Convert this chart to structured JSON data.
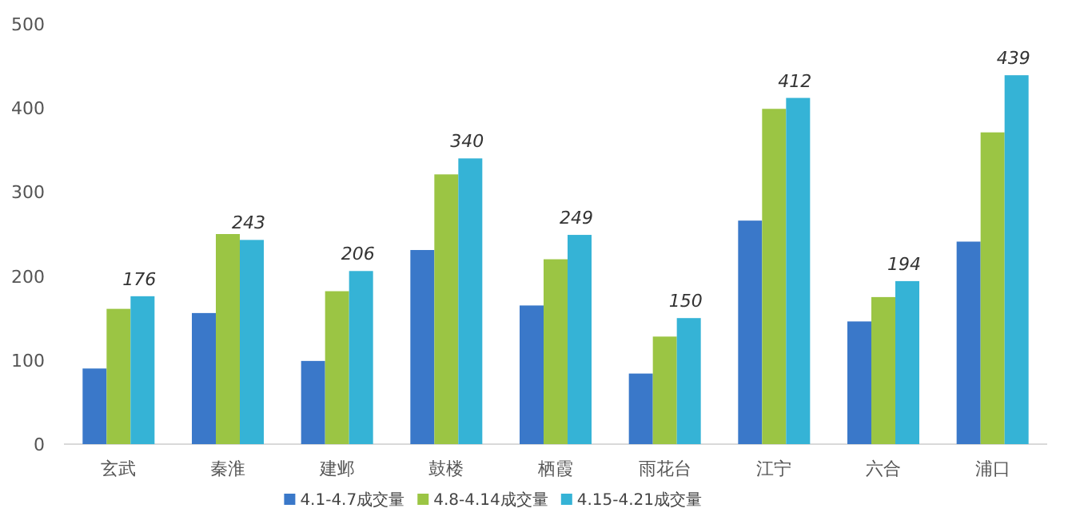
{
  "chart_data": {
    "type": "bar",
    "categories": [
      "玄武",
      "秦淮",
      "建邺",
      "鼓楼",
      "栖霞",
      "雨花台",
      "江宁",
      "六合",
      "浦口"
    ],
    "series": [
      {
        "name": "4.1-4.7成交量",
        "color": "#3a78c9",
        "values": [
          90,
          156,
          99,
          231,
          165,
          84,
          266,
          146,
          241
        ]
      },
      {
        "name": "4.8-4.14成交量",
        "color": "#9bc544",
        "values": [
          161,
          250,
          182,
          321,
          220,
          128,
          399,
          175,
          371
        ]
      },
      {
        "name": "4.15-4.21成交量",
        "color": "#35b3d6",
        "values": [
          176,
          243,
          206,
          340,
          249,
          150,
          412,
          194,
          439
        ],
        "value_labels": [
          "176",
          "243",
          "206",
          "340",
          "249",
          "150",
          "412",
          "194",
          "439"
        ]
      }
    ],
    "ylim": [
      0,
      500
    ],
    "yticks": [
      0,
      100,
      200,
      300,
      400,
      500
    ],
    "grid": false,
    "legend": "bottom"
  }
}
